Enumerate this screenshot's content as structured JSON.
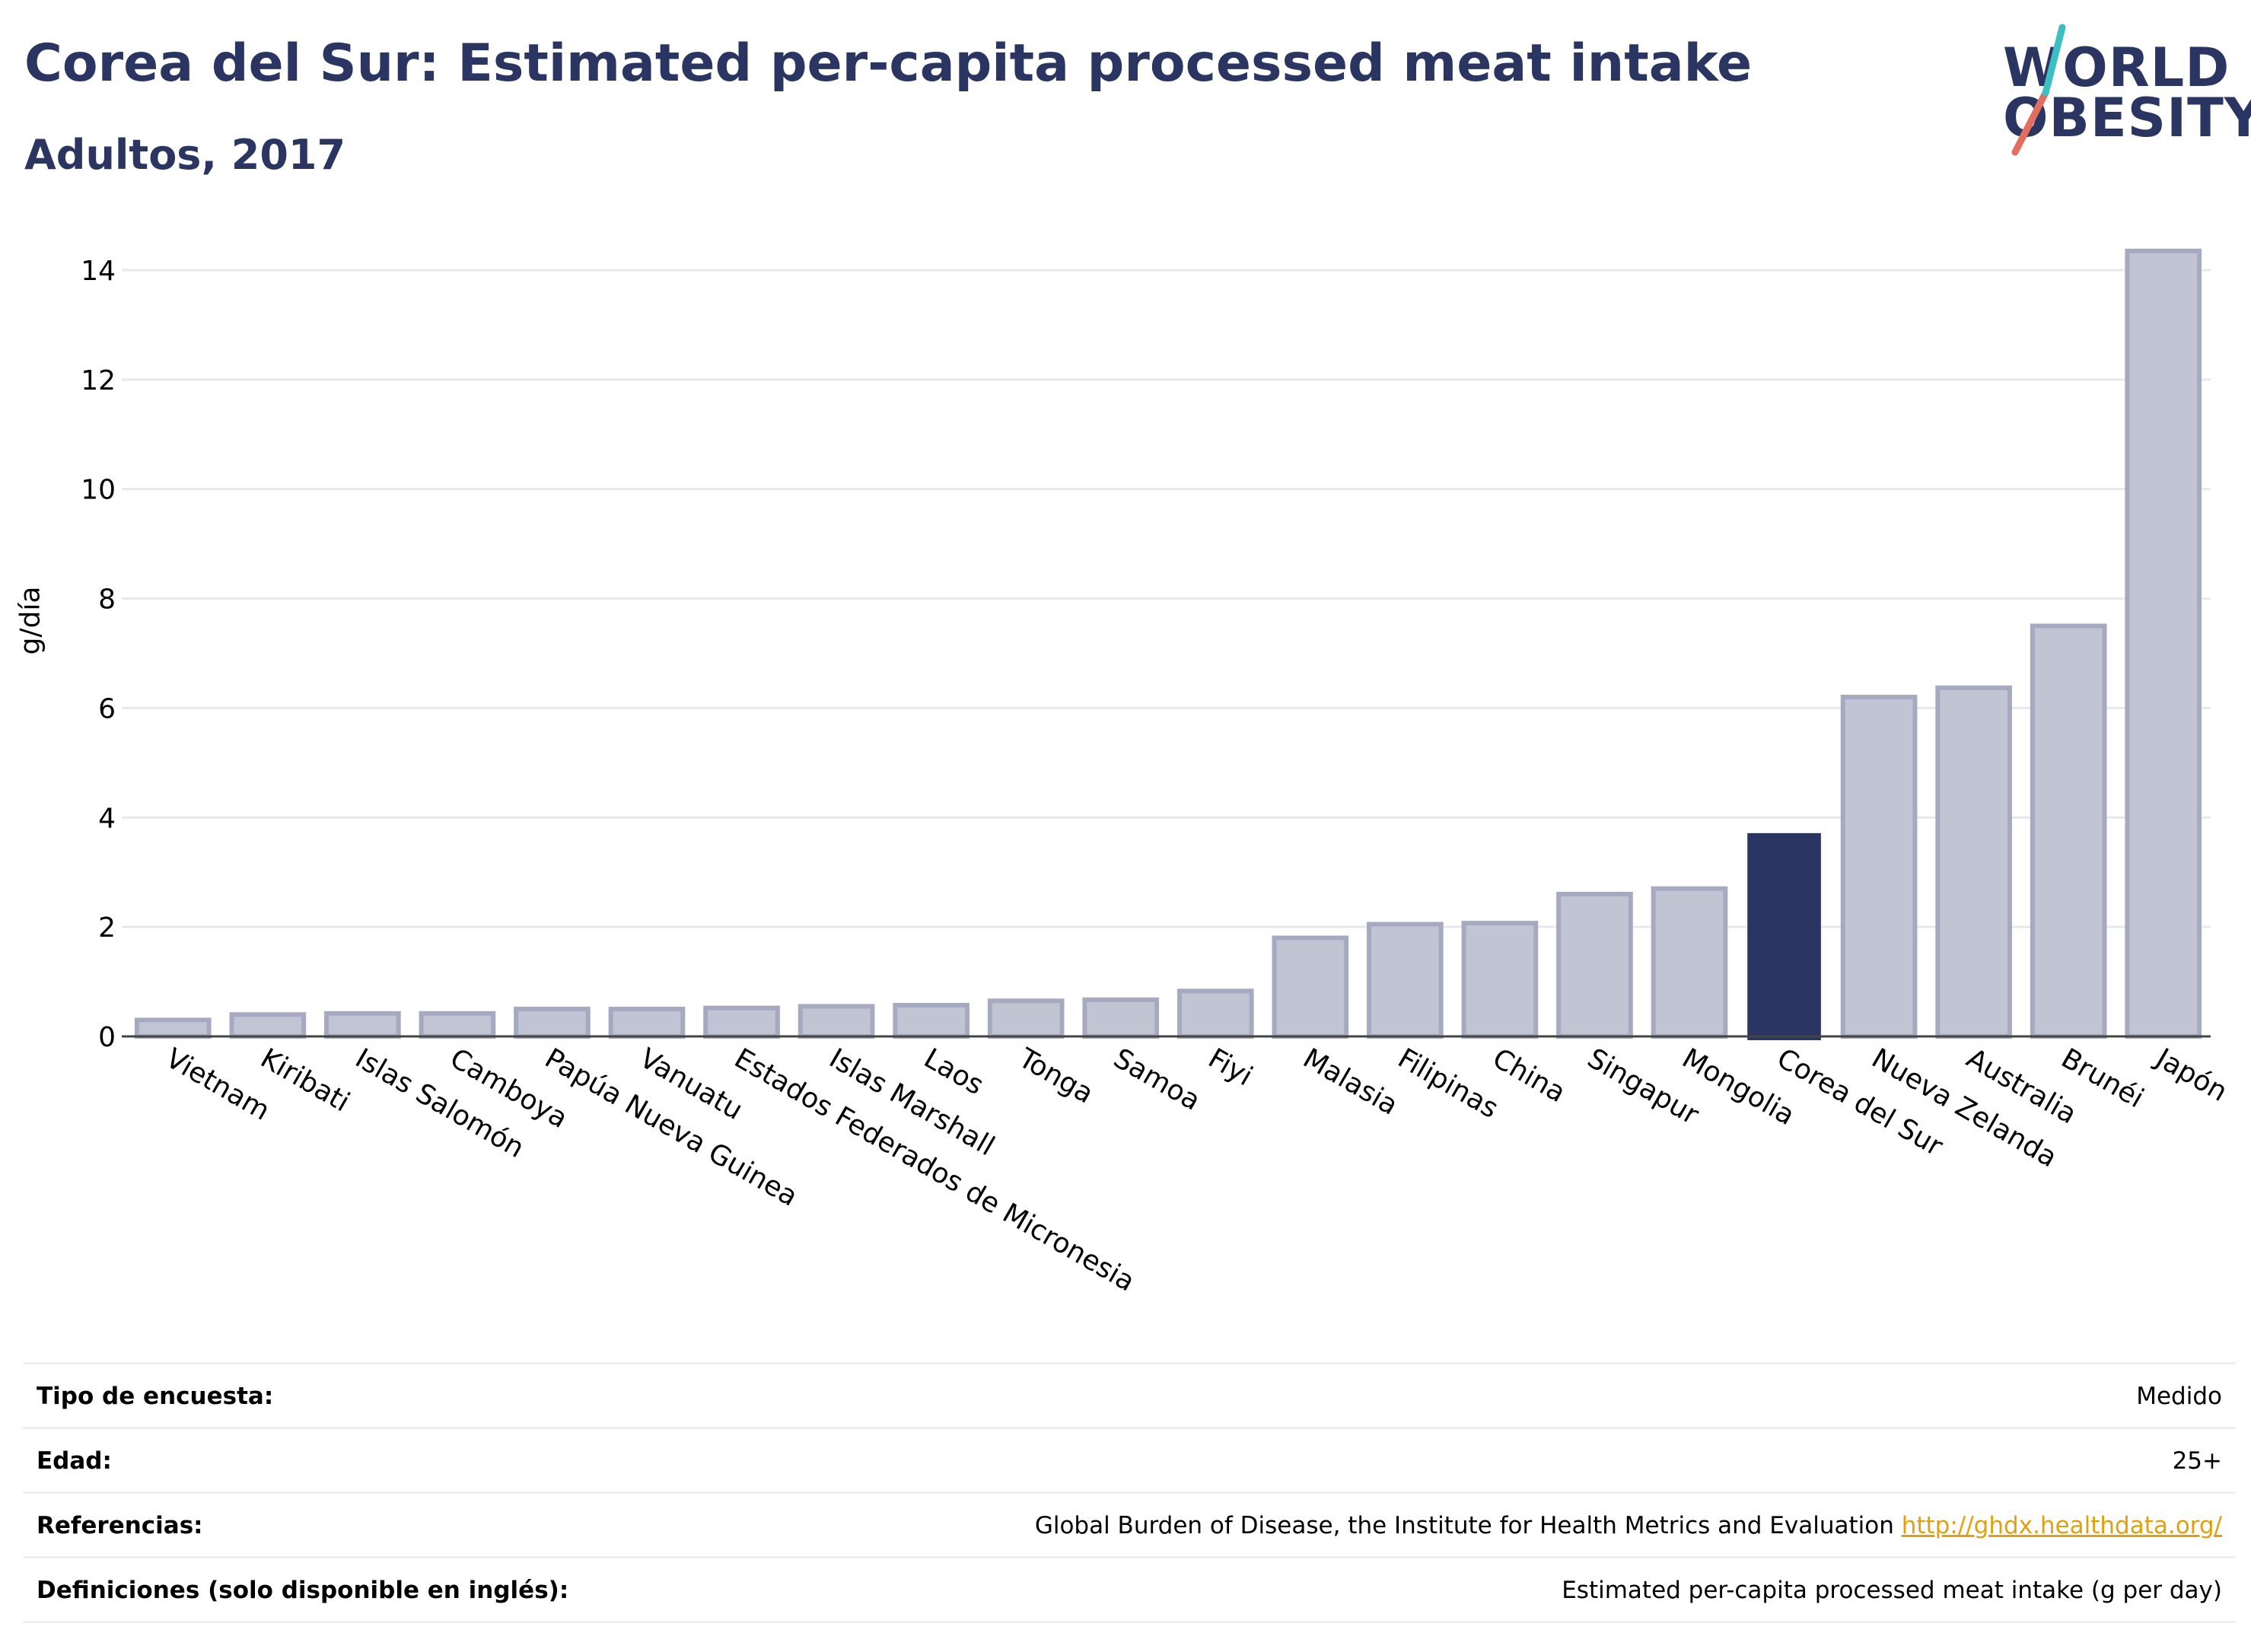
{
  "title": "Corea del Sur: Estimated per-capita processed meat intake",
  "subtitle": "Adultos, 2017",
  "logo": {
    "line1": "WORLD",
    "line2": "OBESITY"
  },
  "colors": {
    "title": "#2b3561",
    "bar_default_fill": "#c1c4d2",
    "bar_default_stroke": "#a6aac0",
    "bar_highlight": "#2b3561",
    "grid": "#e8e9ee",
    "link": "#e1a10e",
    "logo_teal": "#3dbec2",
    "logo_red": "#e36e5f"
  },
  "chart_data": {
    "type": "bar",
    "categories": [
      "Vietnam",
      "Kiribati",
      "Islas Salomón",
      "Camboya",
      "Papúa Nueva Guinea",
      "Vanuatu",
      "Estados Federados de Micronesia",
      "Islas Marshall",
      "Laos",
      "Tonga",
      "Samoa",
      "Fiyi",
      "Malasia",
      "Filipinas",
      "China",
      "Singapur",
      "Mongolia",
      "Corea del Sur",
      "Nueva Zelanda",
      "Australia",
      "Brunéi",
      "Japón"
    ],
    "values": [
      0.3,
      0.4,
      0.42,
      0.42,
      0.5,
      0.5,
      0.52,
      0.55,
      0.57,
      0.65,
      0.67,
      0.83,
      1.8,
      2.05,
      2.07,
      2.6,
      2.7,
      3.7,
      6.2,
      6.37,
      7.5,
      14.35
    ],
    "highlight": "Corea del Sur",
    "ylabel": "g/día",
    "xlabel": "",
    "ylim": [
      0,
      15
    ],
    "yticks": [
      0,
      2,
      4,
      6,
      8,
      10,
      12,
      14
    ],
    "grid": true
  },
  "meta": {
    "survey_label": "Tipo de encuesta:",
    "survey_value": "Medido",
    "age_label": "Edad:",
    "age_value": "25+",
    "refs_label": "Referencias:",
    "refs_text": "Global Burden of Disease, the Institute for Health Metrics and Evaluation ",
    "refs_link": "http://ghdx.healthdata.org/",
    "defs_label": "Definiciones (solo disponible en inglés):",
    "defs_value": "Estimated per-capita processed meat intake (g per day)"
  }
}
